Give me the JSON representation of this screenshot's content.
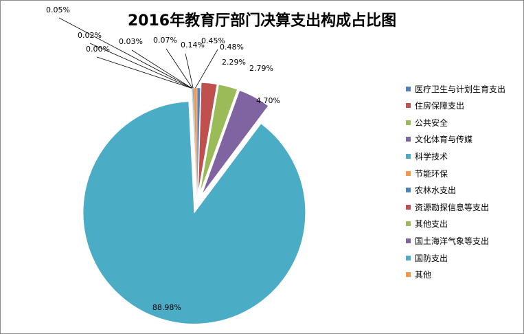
{
  "chart_data": {
    "type": "pie",
    "title": "2016年教育厅部门决算支出构成占比图",
    "series": [
      {
        "name": "医疗卫生与计划生育支出",
        "value": 0.45,
        "label": "0.45%",
        "color": "#4F81BD"
      },
      {
        "name": "住房保障支出",
        "value": 2.29,
        "label": "2.29%",
        "color": "#C0504D"
      },
      {
        "name": "公共安全",
        "value": 2.79,
        "label": "2.79%",
        "color": "#9BBB59"
      },
      {
        "name": "文化体育与传媒",
        "value": 4.7,
        "label": "4.70%",
        "color": "#8064A2"
      },
      {
        "name": "科学技术",
        "value": 88.98,
        "label": "88.98%",
        "color": "#4BACC6"
      },
      {
        "name": "节能环保",
        "value": 0.0,
        "label": "0.00%",
        "color": "#F79646"
      },
      {
        "name": "农林水支出",
        "value": 0.02,
        "label": "0.02%",
        "color": "#4F81BD"
      },
      {
        "name": "资源勘探信息等支出",
        "value": 0.03,
        "label": "0.03%",
        "color": "#C0504D"
      },
      {
        "name": "其他支出",
        "value": 0.05,
        "label": "0.05%",
        "color": "#9BBB59"
      },
      {
        "name": "国土海洋气象等支出",
        "value": 0.07,
        "label": "0.07%",
        "color": "#8064A2"
      },
      {
        "name": "国防支出",
        "value": 0.14,
        "label": "0.14%",
        "color": "#4BACC6"
      },
      {
        "name": "其他",
        "value": 0.48,
        "label": "0.48%",
        "color": "#F79646"
      }
    ],
    "legend": {
      "position": "right",
      "entries": [
        {
          "name": "医疗卫生与计划生育支出",
          "color": "#4F81BD"
        },
        {
          "name": "住房保障支出",
          "color": "#C0504D"
        },
        {
          "name": "公共安全",
          "color": "#9BBB59"
        },
        {
          "name": "文化体育与传媒",
          "color": "#8064A2"
        },
        {
          "name": "科学技术",
          "color": "#4BACC6"
        },
        {
          "name": "节能环保",
          "color": "#F79646"
        },
        {
          "name": "农林水支出",
          "color": "#4F81BD"
        },
        {
          "name": "资源勘探信息等支出",
          "color": "#C0504D"
        },
        {
          "name": "其他支出",
          "color": "#9BBB59"
        },
        {
          "name": "国土海洋气象等支出",
          "color": "#8064A2"
        },
        {
          "name": "国防支出",
          "color": "#4BACC6"
        },
        {
          "name": "其他",
          "color": "#F79646"
        }
      ]
    }
  }
}
